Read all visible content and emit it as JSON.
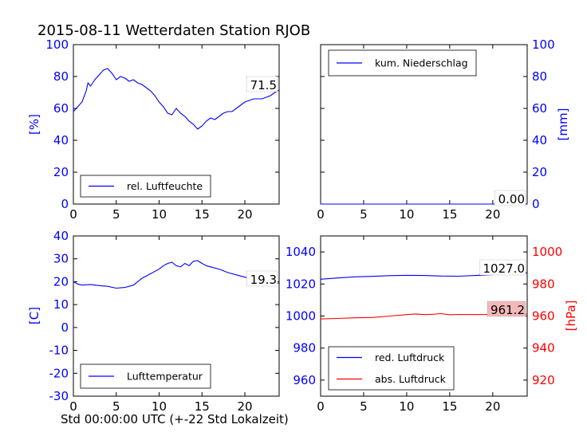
{
  "title": "2015-08-11 Wetterdaten Station RJOB",
  "xlabel": "Std 00:00:00 UTC (+-22 Std Lokalzeit)",
  "colors": {
    "blue": "#0000ff",
    "red": "#ff0000",
    "annot_red_bg": "#f4b8b8"
  },
  "chart_data": [
    {
      "type": "line",
      "panel": "top-left",
      "ylabel": "[%]",
      "xlim": [
        0,
        24
      ],
      "ylim": [
        0,
        100
      ],
      "xticks": [
        0,
        5,
        10,
        15,
        20
      ],
      "yticks": [
        0,
        20,
        40,
        60,
        80,
        100
      ],
      "legend": "lower-left",
      "series": [
        {
          "name": "rel. Luftfeuchte",
          "color": "#0000ff",
          "x": [
            0,
            0.5,
            1,
            1.5,
            1.7,
            2,
            2.5,
            3,
            3.5,
            4,
            4.5,
            5,
            5.5,
            6,
            6.5,
            7,
            7.5,
            8,
            8.5,
            9,
            9.5,
            10,
            10.5,
            11,
            11.5,
            12,
            12.5,
            13,
            13.5,
            14,
            14.5,
            15,
            15.5,
            16,
            16.5,
            17,
            17.5,
            18,
            18.5,
            19,
            19.5,
            20,
            20.5,
            21,
            21.5,
            22,
            22.5,
            23,
            23.5,
            24
          ],
          "y": [
            58,
            61,
            64,
            71,
            76,
            74,
            78,
            81,
            84,
            85,
            82,
            78,
            80,
            79,
            77,
            78,
            76,
            75,
            73,
            71,
            68,
            64,
            61,
            57,
            56,
            60,
            57,
            55,
            52,
            50,
            47,
            49,
            52,
            54,
            53,
            55,
            57,
            58,
            58,
            60,
            62,
            64,
            65,
            66,
            66,
            66,
            67,
            68,
            70,
            71.5
          ]
        }
      ],
      "annotation": "71.5"
    },
    {
      "type": "line",
      "panel": "top-right",
      "ylabel": "[mm]",
      "xlim": [
        0,
        24
      ],
      "ylim": [
        0,
        100
      ],
      "xticks": [
        0,
        5,
        10,
        15,
        20
      ],
      "yticks": [
        0,
        20,
        40,
        60,
        80,
        100
      ],
      "legend": "upper-left",
      "series": [
        {
          "name": "kum. Niederschlag",
          "color": "#0000ff",
          "x": [
            0,
            24
          ],
          "y": [
            0,
            0
          ]
        }
      ],
      "annotation": "0.00"
    },
    {
      "type": "line",
      "panel": "bottom-left",
      "ylabel": "[C]",
      "xlim": [
        0,
        24
      ],
      "ylim": [
        -30,
        40
      ],
      "xticks": [
        0,
        5,
        10,
        15,
        20
      ],
      "yticks": [
        -30,
        -20,
        -10,
        0,
        10,
        20,
        30,
        40
      ],
      "legend": "lower-left",
      "series": [
        {
          "name": "Lufttemperatur",
          "color": "#0000ff",
          "x": [
            0,
            0.5,
            1,
            2,
            3,
            4,
            5,
            6,
            7,
            7.5,
            8,
            9,
            10,
            10.5,
            11,
            11.5,
            12,
            12.5,
            13,
            13.5,
            14,
            14.5,
            15,
            15.5,
            16,
            17,
            18,
            19,
            20,
            21,
            22,
            23,
            24
          ],
          "y": [
            20,
            19,
            18.5,
            18.8,
            18.3,
            18,
            17.2,
            17.5,
            18.5,
            20,
            21.5,
            23.5,
            25.5,
            27,
            28,
            28.5,
            27,
            26.5,
            28,
            27,
            29,
            29.2,
            28,
            27,
            26.5,
            25.5,
            24,
            23,
            22,
            21,
            20.2,
            19.8,
            19.3
          ]
        }
      ],
      "annotation": "19.3"
    },
    {
      "type": "line",
      "panel": "bottom-right",
      "ylabel": "[hPa]",
      "xlim": [
        0,
        24
      ],
      "ylim_left": [
        950,
        1050
      ],
      "ylim_right": [
        910,
        1010
      ],
      "xticks": [
        0,
        5,
        10,
        15,
        20
      ],
      "yticks_left": [
        960,
        980,
        1000,
        1020,
        1040
      ],
      "yticks_right": [
        920,
        940,
        960,
        980,
        1000
      ],
      "legend": "lower-left",
      "series": [
        {
          "name": "red. Luftdruck",
          "color": "#0000ff",
          "axis": "left",
          "x": [
            0,
            2,
            4,
            6,
            8,
            10,
            12,
            14,
            16,
            18,
            20,
            22,
            24
          ],
          "y": [
            1023,
            1023.8,
            1024.5,
            1024.8,
            1025.2,
            1025.4,
            1025.3,
            1025.0,
            1024.9,
            1025.3,
            1025.8,
            1026.4,
            1027.0
          ]
        },
        {
          "name": "abs. Luftdruck",
          "color": "#ff0000",
          "axis": "right",
          "x": [
            0,
            2,
            4,
            6,
            8,
            10,
            11,
            12,
            13,
            14,
            15,
            16,
            18,
            20,
            22,
            24
          ],
          "y": [
            958.2,
            958.5,
            958.9,
            959.1,
            960.0,
            960.9,
            961.3,
            960.9,
            961.1,
            961.5,
            960.8,
            961.0,
            960.9,
            961.0,
            961.0,
            961.2
          ]
        }
      ],
      "annotations": [
        "1027.0",
        "961.2"
      ]
    }
  ]
}
